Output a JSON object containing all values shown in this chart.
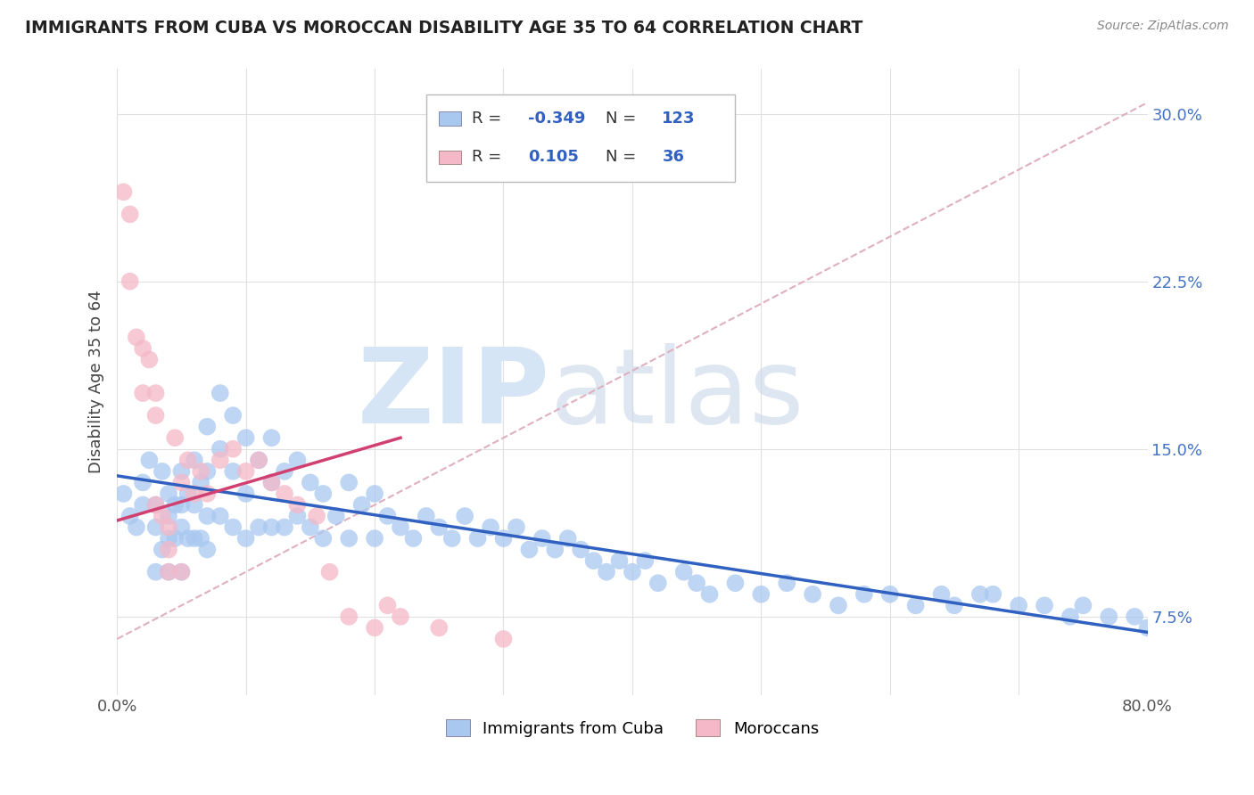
{
  "title": "IMMIGRANTS FROM CUBA VS MOROCCAN DISABILITY AGE 35 TO 64 CORRELATION CHART",
  "source": "Source: ZipAtlas.com",
  "ylabel": "Disability Age 35 to 64",
  "xlim": [
    0.0,
    0.8
  ],
  "ylim": [
    0.04,
    0.32
  ],
  "xticks": [
    0.0,
    0.1,
    0.2,
    0.3,
    0.4,
    0.5,
    0.6,
    0.7,
    0.8
  ],
  "xticklabels": [
    "0.0%",
    "",
    "",
    "",
    "",
    "",
    "",
    "",
    "80.0%"
  ],
  "ytick_vals": [
    0.075,
    0.15,
    0.225,
    0.3
  ],
  "ytick_labels": [
    "7.5%",
    "15.0%",
    "22.5%",
    "30.0%"
  ],
  "blue_color": "#A8C8F0",
  "pink_color": "#F5B8C8",
  "trend_blue_color": "#3060C0",
  "trend_pink_color": "#D04070",
  "ref_line_color": "#E0B0C0",
  "watermark_color": "#D5E5F5",
  "blue_scatter_x": [
    0.005,
    0.01,
    0.015,
    0.02,
    0.02,
    0.025,
    0.03,
    0.03,
    0.03,
    0.035,
    0.035,
    0.04,
    0.04,
    0.04,
    0.04,
    0.045,
    0.045,
    0.05,
    0.05,
    0.05,
    0.05,
    0.055,
    0.055,
    0.06,
    0.06,
    0.06,
    0.065,
    0.065,
    0.07,
    0.07,
    0.07,
    0.07,
    0.08,
    0.08,
    0.08,
    0.09,
    0.09,
    0.09,
    0.1,
    0.1,
    0.1,
    0.11,
    0.11,
    0.12,
    0.12,
    0.12,
    0.13,
    0.13,
    0.14,
    0.14,
    0.15,
    0.15,
    0.16,
    0.16,
    0.17,
    0.18,
    0.18,
    0.19,
    0.2,
    0.2,
    0.21,
    0.22,
    0.23,
    0.24,
    0.25,
    0.26,
    0.27,
    0.28,
    0.29,
    0.3,
    0.31,
    0.32,
    0.33,
    0.34,
    0.35,
    0.36,
    0.37,
    0.38,
    0.39,
    0.4,
    0.41,
    0.42,
    0.44,
    0.45,
    0.46,
    0.48,
    0.5,
    0.52,
    0.54,
    0.56,
    0.58,
    0.6,
    0.62,
    0.64,
    0.65,
    0.67,
    0.68,
    0.7,
    0.72,
    0.74,
    0.75,
    0.77,
    0.79,
    0.8
  ],
  "blue_scatter_y": [
    0.13,
    0.12,
    0.115,
    0.125,
    0.135,
    0.145,
    0.125,
    0.115,
    0.095,
    0.14,
    0.105,
    0.13,
    0.12,
    0.11,
    0.095,
    0.125,
    0.11,
    0.14,
    0.125,
    0.115,
    0.095,
    0.13,
    0.11,
    0.145,
    0.125,
    0.11,
    0.135,
    0.11,
    0.16,
    0.14,
    0.12,
    0.105,
    0.175,
    0.15,
    0.12,
    0.165,
    0.14,
    0.115,
    0.155,
    0.13,
    0.11,
    0.145,
    0.115,
    0.155,
    0.135,
    0.115,
    0.14,
    0.115,
    0.145,
    0.12,
    0.135,
    0.115,
    0.13,
    0.11,
    0.12,
    0.135,
    0.11,
    0.125,
    0.13,
    0.11,
    0.12,
    0.115,
    0.11,
    0.12,
    0.115,
    0.11,
    0.12,
    0.11,
    0.115,
    0.11,
    0.115,
    0.105,
    0.11,
    0.105,
    0.11,
    0.105,
    0.1,
    0.095,
    0.1,
    0.095,
    0.1,
    0.09,
    0.095,
    0.09,
    0.085,
    0.09,
    0.085,
    0.09,
    0.085,
    0.08,
    0.085,
    0.085,
    0.08,
    0.085,
    0.08,
    0.085,
    0.085,
    0.08,
    0.08,
    0.075,
    0.08,
    0.075,
    0.075,
    0.07
  ],
  "pink_scatter_x": [
    0.005,
    0.01,
    0.01,
    0.015,
    0.02,
    0.02,
    0.025,
    0.03,
    0.03,
    0.03,
    0.035,
    0.04,
    0.04,
    0.04,
    0.045,
    0.05,
    0.05,
    0.055,
    0.06,
    0.065,
    0.07,
    0.08,
    0.09,
    0.1,
    0.11,
    0.12,
    0.13,
    0.14,
    0.155,
    0.165,
    0.18,
    0.2,
    0.21,
    0.22,
    0.25,
    0.3
  ],
  "pink_scatter_y": [
    0.265,
    0.255,
    0.225,
    0.2,
    0.195,
    0.175,
    0.19,
    0.175,
    0.165,
    0.125,
    0.12,
    0.115,
    0.105,
    0.095,
    0.155,
    0.135,
    0.095,
    0.145,
    0.13,
    0.14,
    0.13,
    0.145,
    0.15,
    0.14,
    0.145,
    0.135,
    0.13,
    0.125,
    0.12,
    0.095,
    0.075,
    0.07,
    0.08,
    0.075,
    0.07,
    0.065
  ],
  "blue_trend_x": [
    0.0,
    0.8
  ],
  "blue_trend_y": [
    0.138,
    0.068
  ],
  "pink_trend_x": [
    0.0,
    0.22
  ],
  "pink_trend_y": [
    0.118,
    0.155
  ],
  "ref_line_x": [
    0.0,
    0.8
  ],
  "ref_line_y": [
    0.065,
    0.305
  ]
}
